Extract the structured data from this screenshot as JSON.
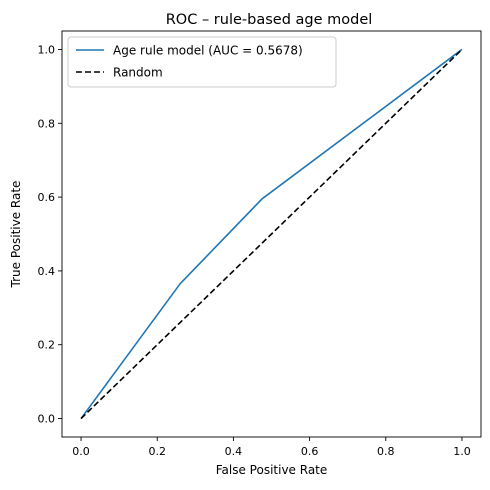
{
  "chart_data": {
    "type": "line",
    "title": "ROC – rule-based age model",
    "xlabel": "False Positive Rate",
    "ylabel": "True Positive Rate",
    "xlim": [
      -0.05,
      1.05
    ],
    "ylim": [
      -0.05,
      1.05
    ],
    "xticks": [
      0.0,
      0.2,
      0.4,
      0.6,
      0.8,
      1.0
    ],
    "yticks": [
      0.0,
      0.2,
      0.4,
      0.6,
      0.8,
      1.0
    ],
    "xtick_labels": [
      "0.0",
      "0.2",
      "0.4",
      "0.6",
      "0.8",
      "1.0"
    ],
    "ytick_labels": [
      "0.0",
      "0.2",
      "0.4",
      "0.6",
      "0.8",
      "1.0"
    ],
    "grid": false,
    "legend_position": "top-left",
    "series": [
      {
        "name": "Age rule model (AUC = 0.5678)",
        "style": "solid",
        "color": "#1f77b4",
        "x": [
          0.0,
          0.26,
          0.475,
          1.0
        ],
        "y": [
          0.0,
          0.365,
          0.595,
          1.0
        ]
      },
      {
        "name": "Random",
        "style": "dashed",
        "color": "#000000",
        "x": [
          0.0,
          1.0
        ],
        "y": [
          0.0,
          1.0
        ]
      }
    ]
  }
}
